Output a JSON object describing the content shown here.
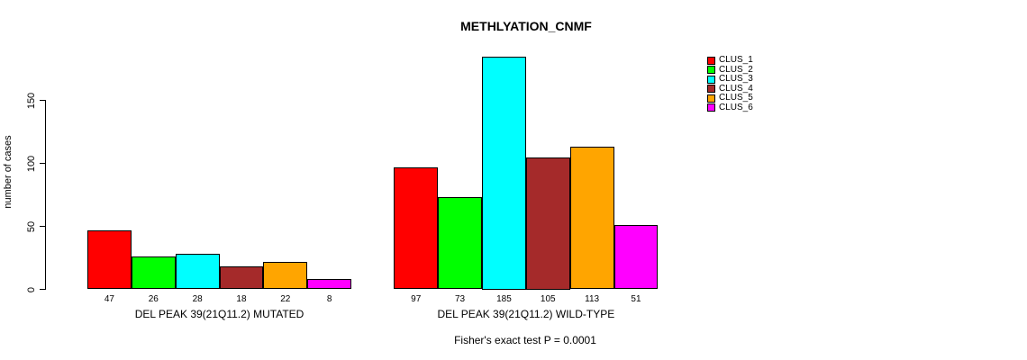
{
  "chart_data": {
    "type": "bar",
    "title": "METHLYATION_CNMF",
    "ylabel": "number of cases",
    "ylim": [
      0,
      185
    ],
    "yticks": [
      0,
      50,
      100,
      150
    ],
    "grid": false,
    "legend_position": "top-right",
    "legend": [
      {
        "label": "CLUS_1",
        "color": "#FF0000"
      },
      {
        "label": "CLUS_2",
        "color": "#00FF00"
      },
      {
        "label": "CLUS_3",
        "color": "#00FFFF"
      },
      {
        "label": "CLUS_4",
        "color": "#A52A2A"
      },
      {
        "label": "CLUS_5",
        "color": "#FFA500"
      },
      {
        "label": "CLUS_6",
        "color": "#FF00FF"
      }
    ],
    "groups": [
      {
        "label": "DEL PEAK 39(21Q11.2) MUTATED",
        "values": [
          47,
          26,
          28,
          18,
          22,
          8
        ]
      },
      {
        "label": "DEL PEAK 39(21Q11.2) WILD-TYPE",
        "values": [
          97,
          73,
          185,
          105,
          113,
          51
        ]
      }
    ],
    "annotation": "Fisher's exact test P = 0.0001"
  }
}
